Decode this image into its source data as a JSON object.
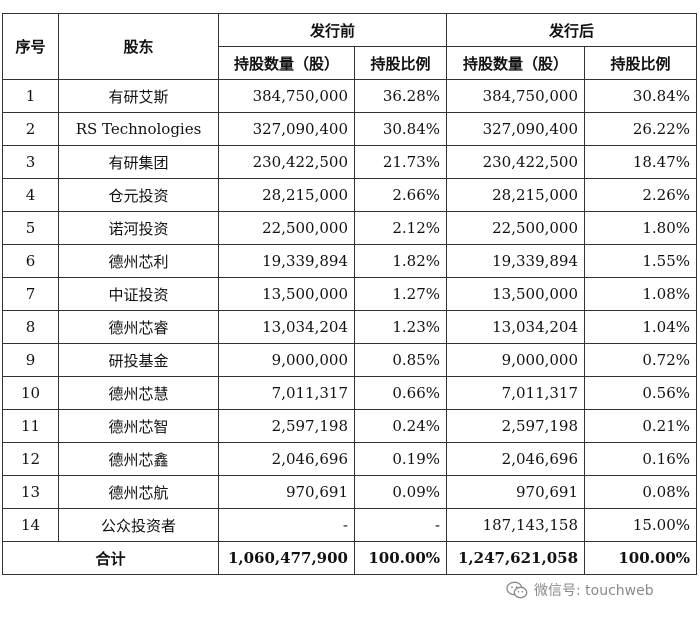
{
  "header": {
    "seq": "序号",
    "holder": "股东",
    "before": "发行前",
    "after": "发行后",
    "shares": "持股数量（股）",
    "ratio": "持股比例"
  },
  "rows": [
    {
      "seq": "1",
      "name": "有研艾斯",
      "before_shares": "384,750,000",
      "before_ratio": "36.28%",
      "after_shares": "384,750,000",
      "after_ratio": "30.84%"
    },
    {
      "seq": "2",
      "name": "RS Technologies",
      "before_shares": "327,090,400",
      "before_ratio": "30.84%",
      "after_shares": "327,090,400",
      "after_ratio": "26.22%"
    },
    {
      "seq": "3",
      "name": "有研集团",
      "before_shares": "230,422,500",
      "before_ratio": "21.73%",
      "after_shares": "230,422,500",
      "after_ratio": "18.47%"
    },
    {
      "seq": "4",
      "name": "仓元投资",
      "before_shares": "28,215,000",
      "before_ratio": "2.66%",
      "after_shares": "28,215,000",
      "after_ratio": "2.26%"
    },
    {
      "seq": "5",
      "name": "诺河投资",
      "before_shares": "22,500,000",
      "before_ratio": "2.12%",
      "after_shares": "22,500,000",
      "after_ratio": "1.80%"
    },
    {
      "seq": "6",
      "name": "德州芯利",
      "before_shares": "19,339,894",
      "before_ratio": "1.82%",
      "after_shares": "19,339,894",
      "after_ratio": "1.55%"
    },
    {
      "seq": "7",
      "name": "中证投资",
      "before_shares": "13,500,000",
      "before_ratio": "1.27%",
      "after_shares": "13,500,000",
      "after_ratio": "1.08%"
    },
    {
      "seq": "8",
      "name": "德州芯睿",
      "before_shares": "13,034,204",
      "before_ratio": "1.23%",
      "after_shares": "13,034,204",
      "after_ratio": "1.04%"
    },
    {
      "seq": "9",
      "name": "研投基金",
      "before_shares": "9,000,000",
      "before_ratio": "0.85%",
      "after_shares": "9,000,000",
      "after_ratio": "0.72%"
    },
    {
      "seq": "10",
      "name": "德州芯慧",
      "before_shares": "7,011,317",
      "before_ratio": "0.66%",
      "after_shares": "7,011,317",
      "after_ratio": "0.56%"
    },
    {
      "seq": "11",
      "name": "德州芯智",
      "before_shares": "2,597,198",
      "before_ratio": "0.24%",
      "after_shares": "2,597,198",
      "after_ratio": "0.21%"
    },
    {
      "seq": "12",
      "name": "德州芯鑫",
      "before_shares": "2,046,696",
      "before_ratio": "0.19%",
      "after_shares": "2,046,696",
      "after_ratio": "0.16%"
    },
    {
      "seq": "13",
      "name": "德州芯航",
      "before_shares": "970,691",
      "before_ratio": "0.09%",
      "after_shares": "970,691",
      "after_ratio": "0.08%"
    },
    {
      "seq": "14",
      "name": "公众投资者",
      "before_shares": "-",
      "before_ratio": "-",
      "after_shares": "187,143,158",
      "after_ratio": "15.00%"
    }
  ],
  "total": {
    "label": "合计",
    "before_shares": "1,060,477,900",
    "before_ratio": "100.00%",
    "after_shares": "1,247,621,058",
    "after_ratio": "100.00%"
  },
  "watermark": {
    "icon": "wechat-icon",
    "text": "微信号: touchweb"
  }
}
